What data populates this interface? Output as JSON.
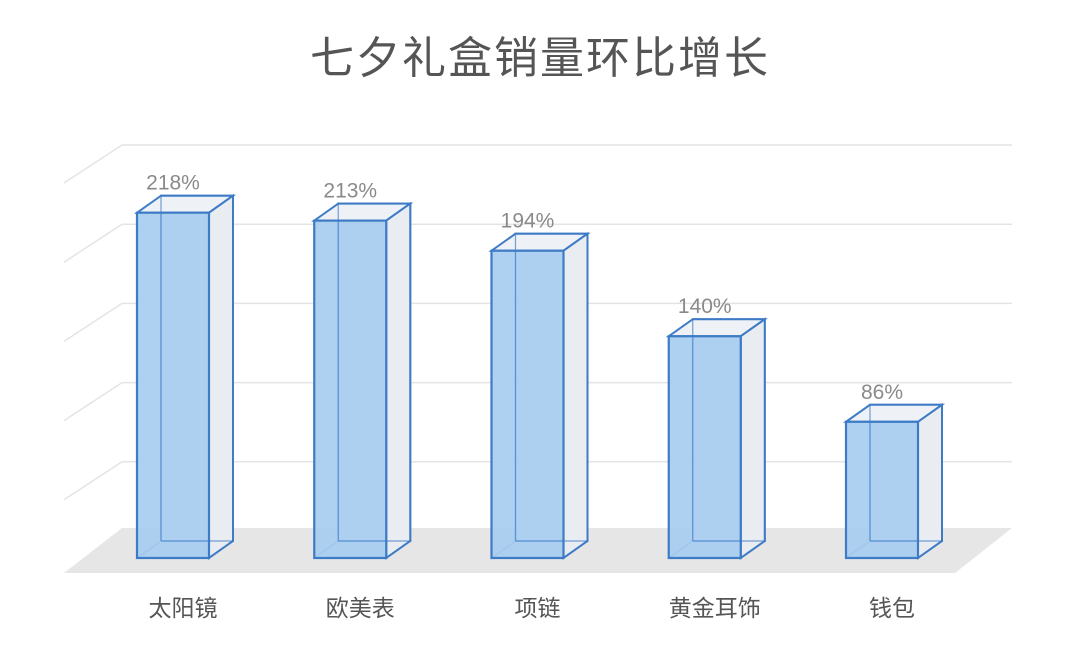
{
  "chart_data": {
    "type": "bar",
    "title": "七夕礼盒销量环比增长",
    "categories": [
      "太阳镜",
      "欧美表",
      "项链",
      "黄金耳饰",
      "钱包"
    ],
    "values": [
      218,
      213,
      194,
      140,
      86
    ],
    "value_labels": [
      "218%",
      "213%",
      "194%",
      "140%",
      "86%"
    ],
    "ylim": [
      0,
      250
    ],
    "grid": true,
    "style": "3d-column",
    "colors": {
      "front": "#a7cdf1",
      "side": "#e9edf2",
      "edge": "#3d7bc6",
      "floor": "#e6e6e6",
      "grid": "#e4e4e4"
    }
  }
}
